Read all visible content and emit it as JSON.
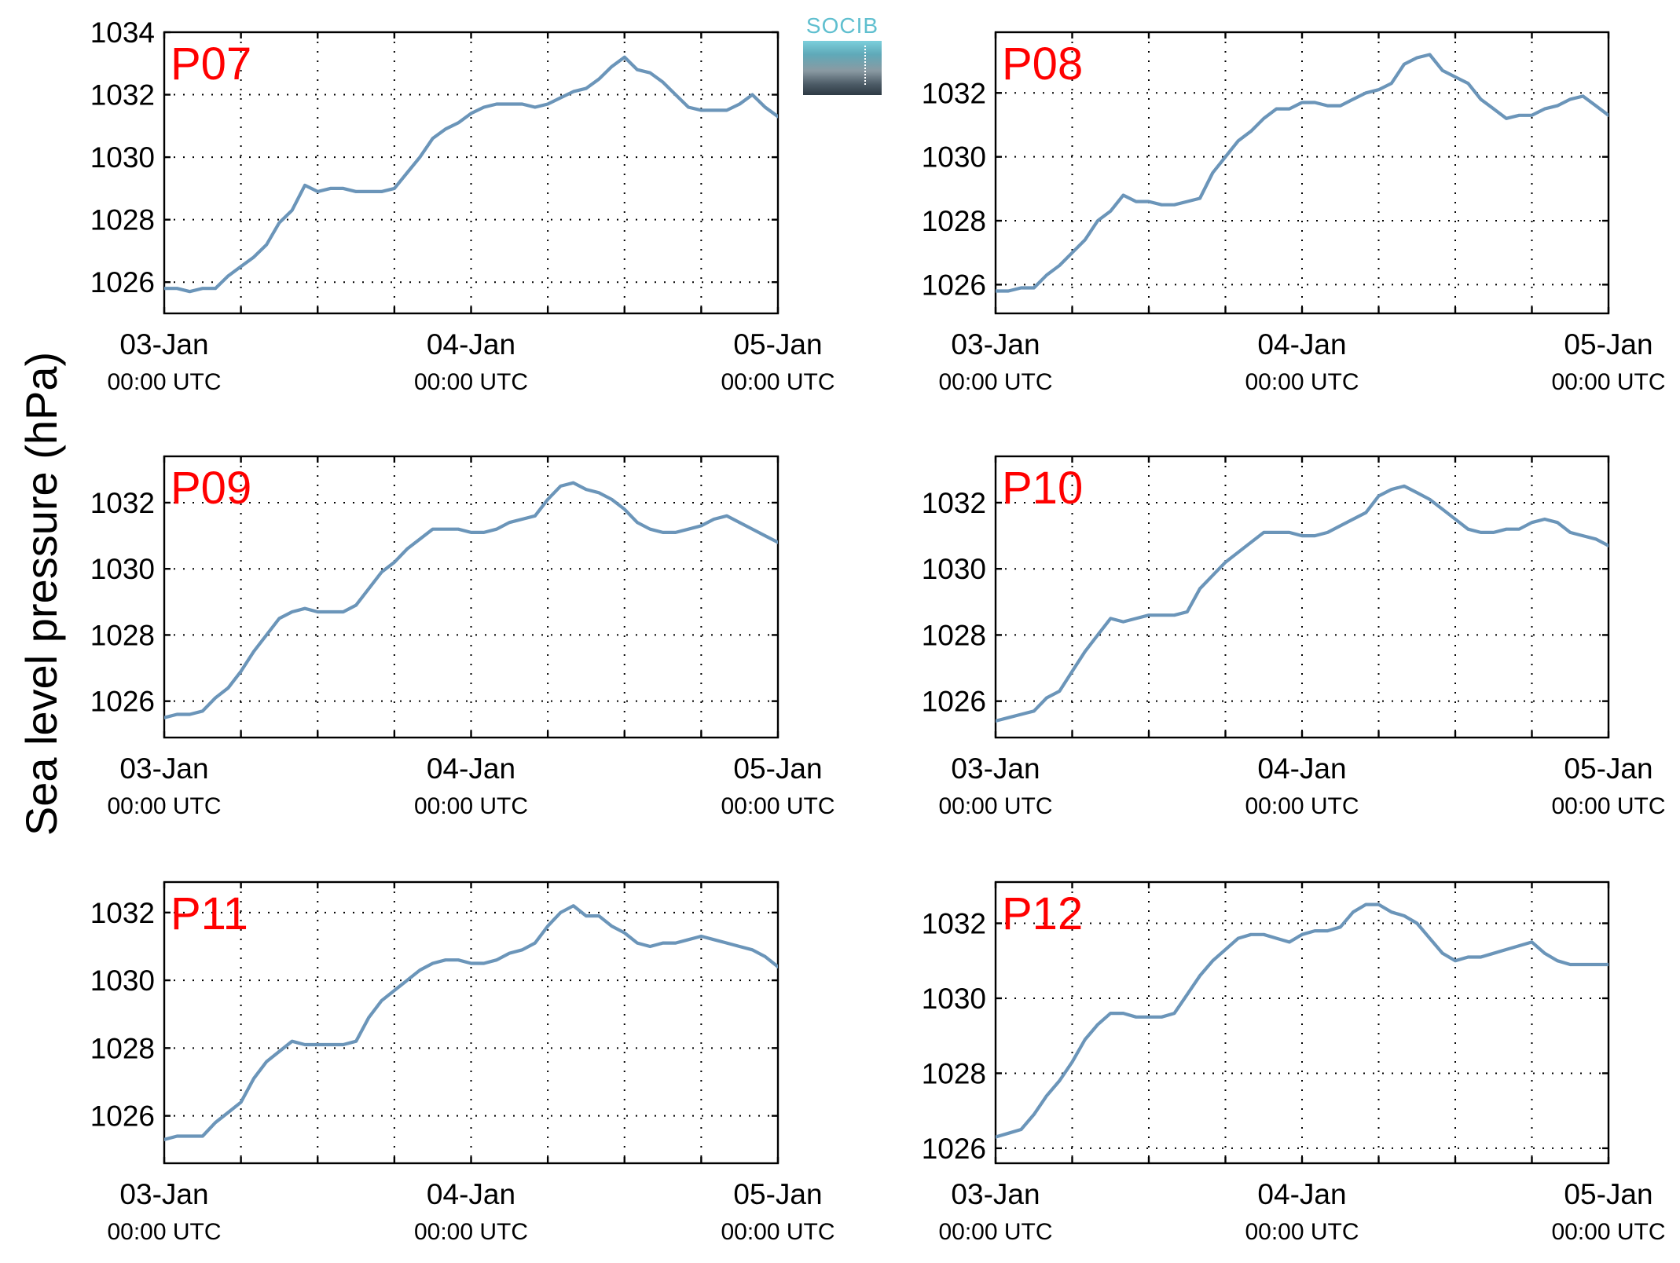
{
  "ylabel": "Sea level pressure (hPa)",
  "logo": {
    "text": "SOCIB"
  },
  "x_tick_labels": [
    {
      "date": "03-Jan",
      "time": "00:00 UTC"
    },
    {
      "date": "04-Jan",
      "time": "00:00 UTC"
    },
    {
      "date": "05-Jan",
      "time": "00:00 UTC"
    }
  ],
  "series_color": "#6b95b9",
  "label_color": "#ff0000",
  "chart_data": [
    {
      "type": "line",
      "title": "P07",
      "xlim": [
        0,
        48
      ],
      "ylim": [
        1025,
        1034
      ],
      "yticks": [
        1026,
        1028,
        1030,
        1032,
        1034
      ],
      "grid": true,
      "x": [
        0,
        1,
        2,
        3,
        4,
        5,
        6,
        7,
        8,
        9,
        10,
        11,
        12,
        13,
        14,
        15,
        16,
        17,
        18,
        19,
        20,
        21,
        22,
        23,
        24,
        25,
        26,
        27,
        28,
        29,
        30,
        31,
        32,
        33,
        34,
        35,
        36,
        37,
        38,
        39,
        40,
        41,
        42,
        43,
        44,
        45,
        46,
        47,
        48
      ],
      "y": [
        1025.8,
        1025.8,
        1025.7,
        1025.8,
        1025.8,
        1026.2,
        1026.5,
        1026.8,
        1027.2,
        1027.9,
        1028.3,
        1029.1,
        1028.9,
        1029.0,
        1029.0,
        1028.9,
        1028.9,
        1028.9,
        1029.0,
        1029.5,
        1030.0,
        1030.6,
        1030.9,
        1031.1,
        1031.4,
        1031.6,
        1031.7,
        1031.7,
        1031.7,
        1031.6,
        1031.7,
        1031.9,
        1032.1,
        1032.2,
        1032.5,
        1032.9,
        1033.2,
        1032.8,
        1032.7,
        1032.4,
        1032.0,
        1031.6,
        1031.5,
        1031.5,
        1031.5,
        1031.7,
        1032.0,
        1031.6,
        1031.3
      ]
    },
    {
      "type": "line",
      "title": "P08",
      "xlim": [
        0,
        48
      ],
      "ylim": [
        1025.1,
        1033.9
      ],
      "yticks": [
        1026,
        1028,
        1030,
        1032
      ],
      "grid": true,
      "x": [
        0,
        1,
        2,
        3,
        4,
        5,
        6,
        7,
        8,
        9,
        10,
        11,
        12,
        13,
        14,
        15,
        16,
        17,
        18,
        19,
        20,
        21,
        22,
        23,
        24,
        25,
        26,
        27,
        28,
        29,
        30,
        31,
        32,
        33,
        34,
        35,
        36,
        37,
        38,
        39,
        40,
        41,
        42,
        43,
        44,
        45,
        46,
        47,
        48
      ],
      "y": [
        1025.8,
        1025.8,
        1025.9,
        1025.9,
        1026.3,
        1026.6,
        1027.0,
        1027.4,
        1028.0,
        1028.3,
        1028.8,
        1028.6,
        1028.6,
        1028.5,
        1028.5,
        1028.6,
        1028.7,
        1029.5,
        1030.0,
        1030.5,
        1030.8,
        1031.2,
        1031.5,
        1031.5,
        1031.7,
        1031.7,
        1031.6,
        1031.6,
        1031.8,
        1032.0,
        1032.1,
        1032.3,
        1032.9,
        1033.1,
        1033.2,
        1032.7,
        1032.5,
        1032.3,
        1031.8,
        1031.5,
        1031.2,
        1031.3,
        1031.3,
        1031.5,
        1031.6,
        1031.8,
        1031.9,
        1031.6,
        1031.3
      ]
    },
    {
      "type": "line",
      "title": "P09",
      "xlim": [
        0,
        48
      ],
      "ylim": [
        1024.9,
        1033.4
      ],
      "yticks": [
        1026,
        1028,
        1030,
        1032
      ],
      "grid": true,
      "x": [
        0,
        1,
        2,
        3,
        4,
        5,
        6,
        7,
        8,
        9,
        10,
        11,
        12,
        13,
        14,
        15,
        16,
        17,
        18,
        19,
        20,
        21,
        22,
        23,
        24,
        25,
        26,
        27,
        28,
        29,
        30,
        31,
        32,
        33,
        34,
        35,
        36,
        37,
        38,
        39,
        40,
        41,
        42,
        43,
        44,
        45,
        46,
        47,
        48
      ],
      "y": [
        1025.5,
        1025.6,
        1025.6,
        1025.7,
        1026.1,
        1026.4,
        1026.9,
        1027.5,
        1028.0,
        1028.5,
        1028.7,
        1028.8,
        1028.7,
        1028.7,
        1028.7,
        1028.9,
        1029.4,
        1029.9,
        1030.2,
        1030.6,
        1030.9,
        1031.2,
        1031.2,
        1031.2,
        1031.1,
        1031.1,
        1031.2,
        1031.4,
        1031.5,
        1031.6,
        1032.1,
        1032.5,
        1032.6,
        1032.4,
        1032.3,
        1032.1,
        1031.8,
        1031.4,
        1031.2,
        1031.1,
        1031.1,
        1031.2,
        1031.3,
        1031.5,
        1031.6,
        1031.4,
        1031.2,
        1031.0,
        1030.8
      ]
    },
    {
      "type": "line",
      "title": "P10",
      "xlim": [
        0,
        48
      ],
      "ylim": [
        1024.9,
        1033.4
      ],
      "yticks": [
        1026,
        1028,
        1030,
        1032
      ],
      "grid": true,
      "x": [
        0,
        1,
        2,
        3,
        4,
        5,
        6,
        7,
        8,
        9,
        10,
        11,
        12,
        13,
        14,
        15,
        16,
        17,
        18,
        19,
        20,
        21,
        22,
        23,
        24,
        25,
        26,
        27,
        28,
        29,
        30,
        31,
        32,
        33,
        34,
        35,
        36,
        37,
        38,
        39,
        40,
        41,
        42,
        43,
        44,
        45,
        46,
        47,
        48
      ],
      "y": [
        1025.4,
        1025.5,
        1025.6,
        1025.7,
        1026.1,
        1026.3,
        1026.9,
        1027.5,
        1028.0,
        1028.5,
        1028.4,
        1028.5,
        1028.6,
        1028.6,
        1028.6,
        1028.7,
        1029.4,
        1029.8,
        1030.2,
        1030.5,
        1030.8,
        1031.1,
        1031.1,
        1031.1,
        1031.0,
        1031.0,
        1031.1,
        1031.3,
        1031.5,
        1031.7,
        1032.2,
        1032.4,
        1032.5,
        1032.3,
        1032.1,
        1031.8,
        1031.5,
        1031.2,
        1031.1,
        1031.1,
        1031.2,
        1031.2,
        1031.4,
        1031.5,
        1031.4,
        1031.1,
        1031.0,
        1030.9,
        1030.7
      ]
    },
    {
      "type": "line",
      "title": "P11",
      "xlim": [
        0,
        48
      ],
      "ylim": [
        1024.6,
        1032.9
      ],
      "yticks": [
        1026,
        1028,
        1030,
        1032
      ],
      "grid": true,
      "x": [
        0,
        1,
        2,
        3,
        4,
        5,
        6,
        7,
        8,
        9,
        10,
        11,
        12,
        13,
        14,
        15,
        16,
        17,
        18,
        19,
        20,
        21,
        22,
        23,
        24,
        25,
        26,
        27,
        28,
        29,
        30,
        31,
        32,
        33,
        34,
        35,
        36,
        37,
        38,
        39,
        40,
        41,
        42,
        43,
        44,
        45,
        46,
        47,
        48
      ],
      "y": [
        1025.3,
        1025.4,
        1025.4,
        1025.4,
        1025.8,
        1026.1,
        1026.4,
        1027.1,
        1027.6,
        1027.9,
        1028.2,
        1028.1,
        1028.1,
        1028.1,
        1028.1,
        1028.2,
        1028.9,
        1029.4,
        1029.7,
        1030.0,
        1030.3,
        1030.5,
        1030.6,
        1030.6,
        1030.5,
        1030.5,
        1030.6,
        1030.8,
        1030.9,
        1031.1,
        1031.6,
        1032.0,
        1032.2,
        1031.9,
        1031.9,
        1031.6,
        1031.4,
        1031.1,
        1031.0,
        1031.1,
        1031.1,
        1031.2,
        1031.3,
        1031.2,
        1031.1,
        1031.0,
        1030.9,
        1030.7,
        1030.4
      ]
    },
    {
      "type": "line",
      "title": "P12",
      "xlim": [
        0,
        48
      ],
      "ylim": [
        1025.6,
        1033.1
      ],
      "yticks": [
        1026,
        1028,
        1030,
        1032
      ],
      "grid": true,
      "x": [
        0,
        1,
        2,
        3,
        4,
        5,
        6,
        7,
        8,
        9,
        10,
        11,
        12,
        13,
        14,
        15,
        16,
        17,
        18,
        19,
        20,
        21,
        22,
        23,
        24,
        25,
        26,
        27,
        28,
        29,
        30,
        31,
        32,
        33,
        34,
        35,
        36,
        37,
        38,
        39,
        40,
        41,
        42,
        43,
        44,
        45,
        46,
        47,
        48
      ],
      "y": [
        1026.3,
        1026.4,
        1026.5,
        1026.9,
        1027.4,
        1027.8,
        1028.3,
        1028.9,
        1029.3,
        1029.6,
        1029.6,
        1029.5,
        1029.5,
        1029.5,
        1029.6,
        1030.1,
        1030.6,
        1031.0,
        1031.3,
        1031.6,
        1031.7,
        1031.7,
        1031.6,
        1031.5,
        1031.7,
        1031.8,
        1031.8,
        1031.9,
        1032.3,
        1032.5,
        1032.5,
        1032.3,
        1032.2,
        1032.0,
        1031.6,
        1031.2,
        1031.0,
        1031.1,
        1031.1,
        1031.2,
        1031.3,
        1031.4,
        1031.5,
        1031.2,
        1031.0,
        1030.9,
        1030.9,
        1030.9,
        1030.9
      ]
    }
  ]
}
